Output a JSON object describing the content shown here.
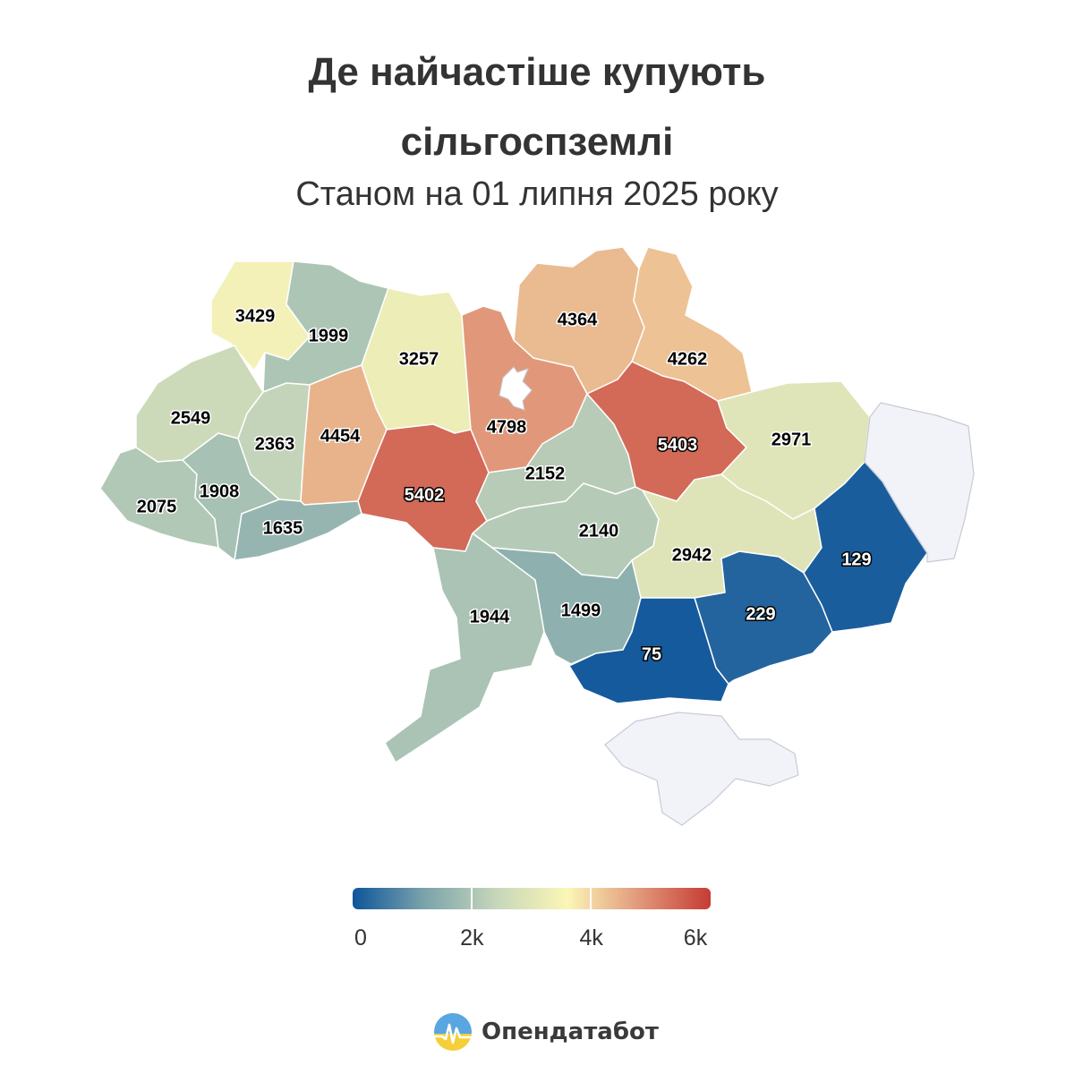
{
  "title": {
    "line1": "Де найчастіше купують",
    "line2": "сільгоспземлі"
  },
  "subtitle": "Станом на 01 липня 2025 року",
  "brand": {
    "name": "Опендатабот",
    "logo_icon": "opendatabot-logo-icon"
  },
  "colors": {
    "scale": [
      "#0e559b",
      "#7ba3ab",
      "#c6d6ba",
      "#fbf6b6",
      "#e1987a",
      "#c63b34"
    ],
    "no_data": "#f2f3f8"
  },
  "legend": {
    "min": 0,
    "max": 6000,
    "tick_labels": [
      "0",
      "2k",
      "4k",
      "6k"
    ],
    "tick_values": [
      0,
      2000,
      4000,
      6000
    ]
  },
  "chart_data": {
    "type": "choropleth",
    "value_field": "purchases",
    "regions": [
      {
        "name": "Волинська",
        "value": 3429,
        "label": "3429"
      },
      {
        "name": "Рівненська",
        "value": 1999,
        "label": "1999"
      },
      {
        "name": "Житомирська",
        "value": 3257,
        "label": "3257"
      },
      {
        "name": "Київська",
        "value": 4798,
        "label": "4798"
      },
      {
        "name": "Чернігівська",
        "value": 4364,
        "label": "4364"
      },
      {
        "name": "Сумська",
        "value": 4262,
        "label": "4262"
      },
      {
        "name": "Львівська",
        "value": 2549,
        "label": "2549"
      },
      {
        "name": "Тернопільська",
        "value": 2363,
        "label": "2363"
      },
      {
        "name": "Хмельницька",
        "value": 4454,
        "label": "4454"
      },
      {
        "name": "Вінницька",
        "value": 5402,
        "label": "5402"
      },
      {
        "name": "Черкаська",
        "value": 2152,
        "label": "2152"
      },
      {
        "name": "Полтавська",
        "value": 5403,
        "label": "5403"
      },
      {
        "name": "Харківська",
        "value": 2971,
        "label": "2971"
      },
      {
        "name": "Закарпатська",
        "value": 2075,
        "label": "2075"
      },
      {
        "name": "Івано-Франківська",
        "value": 1908,
        "label": "1908"
      },
      {
        "name": "Чернівецька",
        "value": 1635,
        "label": "1635"
      },
      {
        "name": "Кіровоградська",
        "value": 2140,
        "label": "2140"
      },
      {
        "name": "Дніпропетровська",
        "value": 2942,
        "label": "2942"
      },
      {
        "name": "Одеська",
        "value": 1944,
        "label": "1944"
      },
      {
        "name": "Миколаївська",
        "value": 1499,
        "label": "1499"
      },
      {
        "name": "Херсонська",
        "value": 75,
        "label": "75"
      },
      {
        "name": "Запорізька",
        "value": 229,
        "label": "229"
      },
      {
        "name": "Донецька",
        "value": 129,
        "label": "129"
      },
      {
        "name": "Луганська",
        "value": null,
        "label": ""
      },
      {
        "name": "АР Крим",
        "value": null,
        "label": ""
      }
    ]
  }
}
